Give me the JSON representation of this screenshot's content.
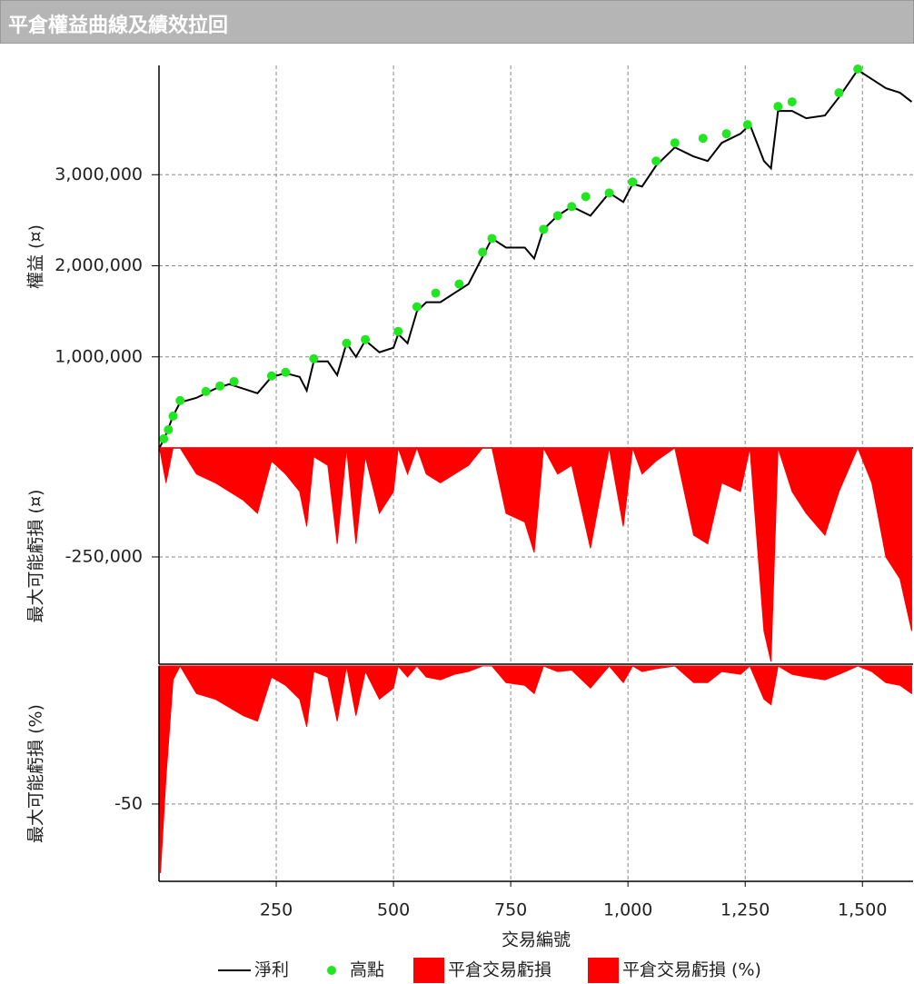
{
  "header": {
    "title": "平倉權益曲線及績效拉回"
  },
  "chart_data": [
    {
      "type": "line",
      "ylabel": "權益 (¤)",
      "xlim": [
        0,
        1608
      ],
      "ylim": [
        0,
        4200000
      ],
      "yticks": [
        {
          "value": 1000000,
          "label": "1,000,000"
        },
        {
          "value": 2000000,
          "label": "2,000,000"
        },
        {
          "value": 3000000,
          "label": "3,000,000"
        }
      ],
      "grid": true,
      "series": [
        {
          "name": "淨利",
          "type": "line",
          "color": "#000000",
          "x": [
            0,
            3,
            15,
            30,
            45,
            80,
            120,
            150,
            180,
            210,
            240,
            270,
            300,
            315,
            330,
            360,
            380,
            400,
            420,
            440,
            470,
            500,
            510,
            530,
            550,
            570,
            600,
            630,
            660,
            690,
            710,
            740,
            780,
            800,
            820,
            850,
            880,
            920,
            960,
            990,
            1010,
            1030,
            1060,
            1100,
            1140,
            1170,
            1200,
            1240,
            1260,
            1290,
            1305,
            1320,
            1350,
            1380,
            1420,
            1450,
            1490,
            1520,
            1550,
            1580,
            1605
          ],
          "values": [
            0,
            20000,
            150000,
            350000,
            500000,
            550000,
            650000,
            700000,
            650000,
            600000,
            780000,
            820000,
            780000,
            630000,
            950000,
            950000,
            800000,
            1150000,
            1000000,
            1180000,
            1050000,
            1100000,
            1250000,
            1150000,
            1500000,
            1600000,
            1600000,
            1700000,
            1800000,
            2100000,
            2300000,
            2200000,
            2200000,
            2080000,
            2400000,
            2550000,
            2650000,
            2550000,
            2800000,
            2700000,
            2900000,
            2870000,
            3100000,
            3300000,
            3200000,
            3150000,
            3350000,
            3450000,
            3550000,
            3150000,
            3070000,
            3700000,
            3700000,
            3620000,
            3650000,
            3850000,
            4150000,
            4050000,
            3950000,
            3900000,
            3800000
          ]
        },
        {
          "name": "高點",
          "type": "scatter",
          "color": "#22e622",
          "x": [
            10,
            20,
            30,
            45,
            100,
            130,
            160,
            240,
            270,
            330,
            400,
            440,
            510,
            550,
            590,
            640,
            690,
            710,
            820,
            850,
            880,
            910,
            960,
            1010,
            1060,
            1100,
            1160,
            1210,
            1255,
            1320,
            1350,
            1450,
            1490
          ],
          "values": [
            100000,
            200000,
            350000,
            520000,
            620000,
            680000,
            730000,
            790000,
            830000,
            980000,
            1150000,
            1190000,
            1280000,
            1550000,
            1700000,
            1800000,
            2150000,
            2300000,
            2400000,
            2550000,
            2650000,
            2760000,
            2800000,
            2920000,
            3150000,
            3350000,
            3400000,
            3450000,
            3550000,
            3750000,
            3800000,
            3900000,
            4160000
          ]
        }
      ]
    },
    {
      "type": "area",
      "ylabel": "最大可能虧損 (¤)",
      "xlim": [
        0,
        1608
      ],
      "ylim": [
        -496000,
        0
      ],
      "yticks": [
        {
          "value": -250000,
          "label": "-250,000"
        }
      ],
      "grid": true,
      "series": [
        {
          "name": "平倉交易虧損",
          "color": "#ff0000",
          "x": [
            0,
            3,
            15,
            30,
            45,
            80,
            120,
            150,
            180,
            210,
            240,
            270,
            300,
            315,
            330,
            360,
            380,
            400,
            420,
            440,
            470,
            500,
            510,
            530,
            550,
            570,
            600,
            630,
            660,
            690,
            710,
            740,
            780,
            800,
            820,
            850,
            880,
            920,
            960,
            990,
            1010,
            1030,
            1060,
            1100,
            1140,
            1170,
            1200,
            1240,
            1260,
            1290,
            1305,
            1320,
            1350,
            1380,
            1420,
            1450,
            1490,
            1520,
            1550,
            1580,
            1605
          ],
          "values": [
            0,
            -10000,
            -80000,
            0,
            0,
            -60000,
            -80000,
            -100000,
            -120000,
            -150000,
            -30000,
            -60000,
            -100000,
            -180000,
            -20000,
            -40000,
            -220000,
            0,
            -220000,
            -20000,
            -150000,
            -100000,
            0,
            -60000,
            0,
            -60000,
            -80000,
            -60000,
            -40000,
            0,
            0,
            -150000,
            -170000,
            -240000,
            0,
            -60000,
            -40000,
            -230000,
            0,
            -180000,
            0,
            -60000,
            -30000,
            0,
            -200000,
            -220000,
            -80000,
            -100000,
            0,
            -420000,
            -490000,
            0,
            -100000,
            -150000,
            -200000,
            -100000,
            0,
            -80000,
            -250000,
            -300000,
            -420000
          ]
        }
      ]
    },
    {
      "type": "area",
      "ylabel": "最大可能虧損 (%)",
      "xlabel": "交易編號",
      "xlim": [
        0,
        1608
      ],
      "ylim": [
        -78,
        0
      ],
      "yticks": [
        -50
      ],
      "grid": true,
      "xticks": [
        250,
        500,
        750,
        {
          "value": 1000,
          "label": "1,000"
        },
        {
          "value": 1250,
          "label": "1,250"
        },
        {
          "value": 1500,
          "label": "1,500"
        }
      ],
      "series": [
        {
          "name": "平倉交易虧損 (%)",
          "color": "#ff0000",
          "x": [
            0,
            3,
            15,
            30,
            45,
            80,
            120,
            150,
            180,
            210,
            240,
            270,
            300,
            315,
            330,
            360,
            380,
            400,
            420,
            440,
            470,
            500,
            510,
            530,
            550,
            570,
            600,
            630,
            660,
            690,
            710,
            740,
            780,
            800,
            820,
            850,
            880,
            920,
            960,
            990,
            1010,
            1030,
            1060,
            1100,
            1140,
            1170,
            1200,
            1240,
            1260,
            1290,
            1305,
            1320,
            1350,
            1380,
            1420,
            1450,
            1490,
            1520,
            1550,
            1580,
            1605
          ],
          "values": [
            0,
            -75,
            -40,
            -5,
            0,
            -10,
            -12,
            -15,
            -18,
            -20,
            -4,
            -7,
            -12,
            -22,
            -2,
            -4,
            -20,
            0,
            -18,
            -2,
            -12,
            -8,
            0,
            -4,
            0,
            -4,
            -5,
            -3,
            -2,
            0,
            0,
            -6,
            -7,
            -10,
            0,
            -2,
            -1.5,
            -8,
            0,
            -6,
            0,
            -2,
            -1,
            0,
            -6,
            -6,
            -2,
            -3,
            0,
            -12,
            -14,
            0,
            -3,
            -4,
            -5,
            -3,
            0,
            -2,
            -6,
            -7,
            -10
          ]
        }
      ]
    }
  ]
}
